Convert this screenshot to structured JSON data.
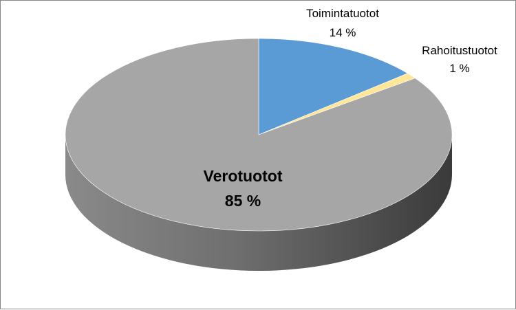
{
  "chart_data": {
    "type": "pie",
    "categories": [
      "Toimintatuotot",
      "Rahoitustuotot",
      "Verotuotot"
    ],
    "values": [
      14,
      1,
      85
    ],
    "value_labels": [
      "14 %",
      "1 %",
      "85 %"
    ],
    "colors": [
      "#5b9bd5",
      "#ffe699",
      "#a6a6a6"
    ],
    "side_colors": [
      "#3d6f9e",
      "#c9b370",
      "#6b6b6b"
    ],
    "legend": "none",
    "title": "",
    "three_d": true
  }
}
